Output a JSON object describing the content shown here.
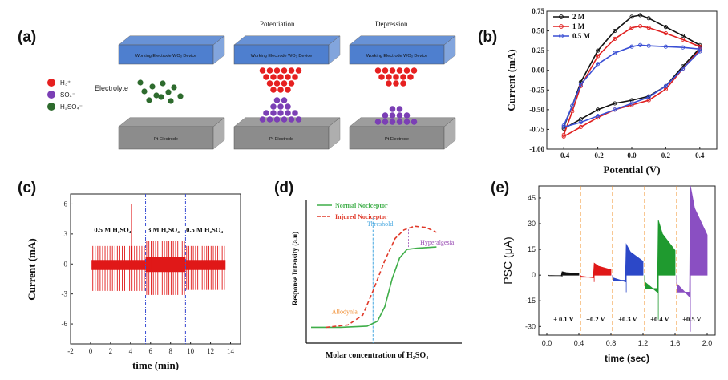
{
  "panels": {
    "a": {
      "label": "(a)",
      "headers": [
        "Potentiation",
        "Depression"
      ],
      "electrode_top": "Working Electrode WO₃ Device",
      "electrode_bottom": "Pt Electrode",
      "electrolyte_label": "Electrolyte",
      "legend": [
        {
          "label": "H₃⁺",
          "color": "#e62020"
        },
        {
          "label": "SO₄⁻",
          "color": "#7b3fb5"
        },
        {
          "label": "H₂SO₄⁻",
          "color": "#2e6b2e"
        }
      ],
      "colors": {
        "top_plate": "#4e7fcf",
        "bottom_plate": "#8c8c8c"
      }
    },
    "b": {
      "label": "(b)"
    },
    "c": {
      "label": "(c)"
    },
    "d": {
      "label": "(d)"
    },
    "e": {
      "label": "(e)"
    }
  },
  "chart_data": [
    {
      "id": "b",
      "type": "line",
      "xlabel": "Potential (V)",
      "ylabel": "Current (mA)",
      "xlim": [
        -0.5,
        0.5
      ],
      "ylim": [
        -1.0,
        0.75
      ],
      "x_ticks": [
        "-0.4",
        "-0.2",
        "0.0",
        "0.2",
        "0.4"
      ],
      "y_ticks": [
        "0.75",
        "0.50",
        "0.25",
        "0.00",
        "-0.25",
        "-0.50",
        "-0.75",
        "-1.00"
      ],
      "legend_position": "top-left",
      "series": [
        {
          "name": "2 M",
          "color": "#111111",
          "upper": [
            [
              -0.4,
              -0.72
            ],
            [
              -0.35,
              -0.45
            ],
            [
              -0.3,
              -0.15
            ],
            [
              -0.2,
              0.25
            ],
            [
              -0.1,
              0.5
            ],
            [
              0.0,
              0.68
            ],
            [
              0.05,
              0.7
            ],
            [
              0.1,
              0.66
            ],
            [
              0.2,
              0.55
            ],
            [
              0.3,
              0.44
            ],
            [
              0.4,
              0.32
            ]
          ],
          "lower": [
            [
              0.4,
              0.28
            ],
            [
              0.3,
              0.05
            ],
            [
              0.2,
              -0.2
            ],
            [
              0.1,
              -0.33
            ],
            [
              0.0,
              -0.38
            ],
            [
              -0.1,
              -0.42
            ],
            [
              -0.2,
              -0.5
            ],
            [
              -0.3,
              -0.62
            ],
            [
              -0.4,
              -0.74
            ]
          ]
        },
        {
          "name": "1 M",
          "color": "#e02020",
          "upper": [
            [
              -0.4,
              -0.82
            ],
            [
              -0.35,
              -0.52
            ],
            [
              -0.3,
              -0.2
            ],
            [
              -0.2,
              0.18
            ],
            [
              -0.1,
              0.4
            ],
            [
              0.0,
              0.54
            ],
            [
              0.05,
              0.56
            ],
            [
              0.1,
              0.54
            ],
            [
              0.2,
              0.47
            ],
            [
              0.3,
              0.39
            ],
            [
              0.4,
              0.3
            ]
          ],
          "lower": [
            [
              0.4,
              0.26
            ],
            [
              0.3,
              0.02
            ],
            [
              0.2,
              -0.24
            ],
            [
              0.1,
              -0.38
            ],
            [
              0.0,
              -0.44
            ],
            [
              -0.1,
              -0.5
            ],
            [
              -0.2,
              -0.6
            ],
            [
              -0.3,
              -0.72
            ],
            [
              -0.4,
              -0.84
            ]
          ]
        },
        {
          "name": "0.5 M",
          "color": "#3a4fd4",
          "upper": [
            [
              -0.4,
              -0.7
            ],
            [
              -0.35,
              -0.45
            ],
            [
              -0.3,
              -0.18
            ],
            [
              -0.2,
              0.08
            ],
            [
              -0.1,
              0.22
            ],
            [
              0.0,
              0.3
            ],
            [
              0.05,
              0.32
            ],
            [
              0.1,
              0.31
            ],
            [
              0.2,
              0.3
            ],
            [
              0.3,
              0.29
            ],
            [
              0.4,
              0.27
            ]
          ],
          "lower": [
            [
              0.4,
              0.24
            ],
            [
              0.3,
              0.02
            ],
            [
              0.2,
              -0.2
            ],
            [
              0.1,
              -0.34
            ],
            [
              0.0,
              -0.42
            ],
            [
              -0.1,
              -0.5
            ],
            [
              -0.2,
              -0.58
            ],
            [
              -0.3,
              -0.66
            ],
            [
              -0.4,
              -0.72
            ]
          ]
        }
      ]
    },
    {
      "id": "c",
      "type": "line",
      "xlabel": "time (min)",
      "ylabel": "Current (mA)",
      "xlim": [
        -2,
        15
      ],
      "ylim": [
        -8,
        7
      ],
      "x_ticks": [
        "-2",
        "0",
        "2",
        "4",
        "6",
        "8",
        "10",
        "12",
        "14"
      ],
      "y_ticks": [
        "6",
        "3",
        "0",
        "-3",
        "-6"
      ],
      "color": "#e01818",
      "region_labels": [
        "0.5 M H₂SO₄",
        "3 M H₂SO₄",
        "0.5 M H₂SO₄"
      ],
      "region_label_x": [
        2.2,
        7.3,
        11.4
      ],
      "dividers": [
        5.5,
        9.5
      ],
      "segments": [
        {
          "start": 0.1,
          "end": 5.5,
          "pulses": 22,
          "pos": 1.8,
          "neg": -2.7,
          "band": [
            -0.6,
            0.4
          ]
        },
        {
          "start": 5.5,
          "end": 9.5,
          "pulses": 18,
          "pos": 2.3,
          "neg": -3.1,
          "band": [
            -0.8,
            0.7
          ]
        },
        {
          "start": 9.5,
          "end": 13.5,
          "pulses": 18,
          "pos": 1.8,
          "neg": -2.6,
          "band": [
            -0.6,
            0.4
          ]
        }
      ],
      "spikes": [
        [
          4.1,
          6.0
        ],
        [
          9.35,
          -7.8
        ]
      ]
    },
    {
      "id": "d",
      "type": "line",
      "xlabel": "Molar concentration  of H₂SO₄",
      "ylabel": "Response Intensity (a.u)",
      "series": [
        {
          "name": "Normal Nociceptor",
          "color": "#3fae49",
          "points": [
            [
              0,
              0.05
            ],
            [
              0.2,
              0.05
            ],
            [
              0.38,
              0.06
            ],
            [
              0.45,
              0.1
            ],
            [
              0.5,
              0.22
            ],
            [
              0.55,
              0.45
            ],
            [
              0.6,
              0.62
            ],
            [
              0.65,
              0.69
            ],
            [
              0.72,
              0.7
            ],
            [
              0.85,
              0.71
            ]
          ]
        },
        {
          "name": "Injured Nociceptor",
          "color": "#e03a2a",
          "dash": true,
          "points": [
            [
              0.1,
              0.05
            ],
            [
              0.25,
              0.07
            ],
            [
              0.35,
              0.15
            ],
            [
              0.42,
              0.35
            ],
            [
              0.5,
              0.6
            ],
            [
              0.57,
              0.78
            ],
            [
              0.63,
              0.85
            ],
            [
              0.7,
              0.88
            ],
            [
              0.78,
              0.87
            ],
            [
              0.85,
              0.83
            ]
          ]
        }
      ],
      "annotations": [
        {
          "text": "Threshold",
          "color": "#48a8e0",
          "x": 0.38,
          "y": 0.88
        },
        {
          "text": "Hyperalgesia",
          "color": "#9b4fb5",
          "x": 0.74,
          "y": 0.73
        },
        {
          "text": "Allodynia",
          "color": "#f08a2a",
          "x": 0.14,
          "y": 0.16
        }
      ],
      "threshold_x": 0.42
    },
    {
      "id": "e",
      "type": "line",
      "xlabel": "time (sec)",
      "ylabel": "PSC (μA)",
      "xlim": [
        -0.1,
        2.1
      ],
      "ylim": [
        -35,
        52
      ],
      "x_ticks": [
        "0.0",
        "0.4",
        "0.8",
        "1.2",
        "1.6",
        "2.0"
      ],
      "y_ticks": [
        "45",
        "30",
        "15",
        "0",
        "-15",
        "-30"
      ],
      "dividers": [
        0.42,
        0.82,
        1.22,
        1.62
      ],
      "segments": [
        {
          "label": "± 0.1 V",
          "color": "#111111",
          "start": 0.02,
          "end": 0.4,
          "peak": 2,
          "dip": -1
        },
        {
          "label": "±0.2 V",
          "color": "#e01818",
          "start": 0.42,
          "end": 0.8,
          "peak": 7,
          "dip": -4
        },
        {
          "label": "±0.3 V",
          "color": "#2c48c8",
          "start": 0.82,
          "end": 1.2,
          "peak": 18,
          "dip": -10
        },
        {
          "label": "±0.4 V",
          "color": "#1f9a2f",
          "start": 1.22,
          "end": 1.6,
          "peak": 32,
          "dip": -26
        },
        {
          "label": "±0.5 V",
          "color": "#8a4fc2",
          "start": 1.62,
          "end": 2.0,
          "peak": 52,
          "dip": -33
        }
      ]
    }
  ]
}
